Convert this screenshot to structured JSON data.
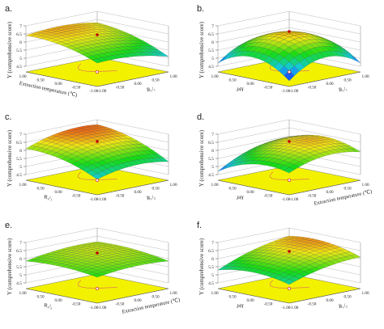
{
  "chart_data": [
    {
      "type": "surface",
      "panel_label": "a.",
      "zlabel": "Y (comprehensive score)",
      "xlabel": "Extraction temperature (℃)",
      "ylabel": "R₁/₁",
      "zticks": [
        "4.5",
        "5",
        "5.5",
        "6",
        "6.5",
        "7"
      ],
      "xticks": [
        "1.00",
        "0.50",
        "0.00",
        "-0.50",
        "-1.00"
      ],
      "yticks": [
        "-1.00",
        "-0.50",
        "0.00",
        "0.50",
        "1.00"
      ],
      "zlim": [
        4.5,
        7
      ],
      "surface": {
        "base": 6.3,
        "a": 0.5,
        "b": -0.15,
        "c": -0.25,
        "d": -0.2,
        "e": 0.1
      }
    },
    {
      "type": "surface",
      "panel_label": "b.",
      "zlabel": "Y (comprehensive score)",
      "xlabel": "pH",
      "ylabel": "R₁/₁",
      "zticks": [
        "4.5",
        "5",
        "5.5",
        "6",
        "6.5",
        "7"
      ],
      "xticks": [
        "1.00",
        "0.50",
        "0.00",
        "-0.50",
        "-1.00"
      ],
      "yticks": [
        "-1.00",
        "-0.50",
        "0.00",
        "0.50",
        "1.00"
      ],
      "zlim": [
        4.5,
        7
      ],
      "surface": {
        "base": 6.5,
        "a": 0.1,
        "b": 0.1,
        "c": -0.9,
        "d": -0.9,
        "e": 0.0
      }
    },
    {
      "type": "surface",
      "panel_label": "c.",
      "zlabel": "Y (comprehensive score)",
      "xlabel": "R₁/₁",
      "ylabel": "R₁/₂",
      "zticks": [
        "4.5",
        "5",
        "5.5",
        "6",
        "6.5",
        "7"
      ],
      "xticks": [
        "1.00",
        "0.50",
        "0.00",
        "-0.50",
        "-1.00"
      ],
      "yticks": [
        "-1.00",
        "-0.50",
        "0.00",
        "0.50",
        "1.00"
      ],
      "zlim": [
        4.5,
        7
      ],
      "surface": {
        "base": 6.4,
        "a": 0.6,
        "b": 0.2,
        "c": -0.3,
        "d": -0.3,
        "e": 0.1
      }
    },
    {
      "type": "surface",
      "panel_label": "d.",
      "zlabel": "Y (comprehensive score)",
      "xlabel": "pH",
      "ylabel": "Extraction temperature (℃)",
      "zticks": [
        "4.5",
        "5",
        "5.5",
        "6",
        "6.5",
        "7"
      ],
      "xticks": [
        "1.00",
        "0.50",
        "0.00",
        "-0.50",
        "-1.00"
      ],
      "yticks": [
        "-1.00",
        "-0.50",
        "0.00",
        "0.50",
        "1.00"
      ],
      "zlim": [
        4.5,
        7
      ],
      "surface": {
        "base": 6.4,
        "a": -0.2,
        "b": 0.4,
        "c": -0.5,
        "d": -0.4,
        "e": 0.2
      }
    },
    {
      "type": "surface",
      "panel_label": "e.",
      "zlabel": "Y (comprehensive score)",
      "xlabel": "R₁/₂",
      "ylabel": "Extraction temperature (℃)",
      "zticks": [
        "4.5",
        "5",
        "5.5",
        "6",
        "6.5",
        "7"
      ],
      "xticks": [
        "1.00",
        "0.50",
        "0.00",
        "-0.50",
        "-1.00"
      ],
      "yticks": [
        "-1.00",
        "-0.50",
        "0.00",
        "0.50",
        "1.00"
      ],
      "zlim": [
        4.5,
        7
      ],
      "surface": {
        "base": 6.2,
        "a": 0.1,
        "b": 0.1,
        "c": -0.15,
        "d": -0.15,
        "e": 0.05
      }
    },
    {
      "type": "surface",
      "panel_label": "f.",
      "zlabel": "Y (comprehensive score)",
      "xlabel": "pH",
      "ylabel": "R₁/₂",
      "zticks": [
        "4.5",
        "5",
        "5.5",
        "6",
        "6.5",
        "7"
      ],
      "xticks": [
        "1.00",
        "0.50",
        "0.00",
        "-0.50",
        "-1.00"
      ],
      "yticks": [
        "-1.00",
        "-0.50",
        "0.00",
        "0.50",
        "1.00"
      ],
      "zlim": [
        4.5,
        7
      ],
      "surface": {
        "base": 6.3,
        "a": 0.1,
        "b": 0.5,
        "c": -0.3,
        "d": -0.2,
        "e": 0.1
      }
    }
  ],
  "colors": {
    "low": "#1010ff",
    "mid": "#10e010",
    "high": "#ff1010",
    "floor": "#f2f200"
  }
}
